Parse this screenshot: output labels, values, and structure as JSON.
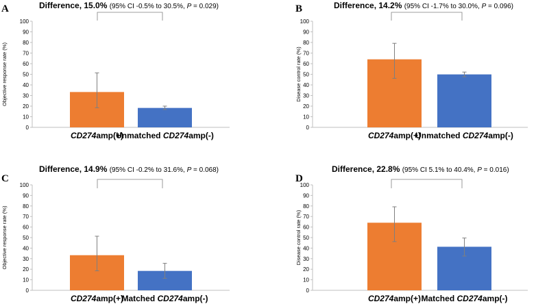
{
  "chart_data": [
    {
      "panel": "A",
      "type": "bar",
      "title_bold": "Difference, 15.0%",
      "title_ci_prefix": "(95% CI -0.5% to 30.5%, ",
      "title_p_label": "P",
      "title_p_value": " = 0.029)",
      "ylabel": "Objective response rate (%)",
      "ylim": [
        0,
        100
      ],
      "yticks": [
        0,
        10,
        20,
        30,
        40,
        50,
        60,
        70,
        80,
        90,
        100
      ],
      "bars": [
        {
          "italic": "CD274",
          "pre": "",
          "post": "amp(+)",
          "value": 33.3,
          "err_low": 18.5,
          "err_high": 51.3,
          "color": "#ED7D31"
        },
        {
          "italic": "CD274",
          "pre": "Unmatched ",
          "post": "amp(-)",
          "value": 18.3,
          "err_low": 16.8,
          "err_high": 20.0,
          "color": "#4472C4"
        }
      ]
    },
    {
      "panel": "B",
      "type": "bar",
      "title_bold": "Difference, 14.2%",
      "title_ci_prefix": "(95% CI -1.7% to 30.0%, ",
      "title_p_label": "P",
      "title_p_value": " = 0.096)",
      "ylabel": "Disease control rate (%)",
      "ylim": [
        0,
        100
      ],
      "yticks": [
        0,
        10,
        20,
        30,
        40,
        50,
        60,
        70,
        80,
        90,
        100
      ],
      "bars": [
        {
          "italic": "CD274",
          "pre": "",
          "post": "amp(+)",
          "value": 64.1,
          "err_low": 46.2,
          "err_high": 79.2,
          "color": "#ED7D31"
        },
        {
          "italic": "CD274",
          "pre": "Unmatched ",
          "post": "amp(-)",
          "value": 49.9,
          "err_low": 47.7,
          "err_high": 52.1,
          "color": "#4472C4"
        }
      ]
    },
    {
      "panel": "C",
      "type": "bar",
      "title_bold": "Difference, 14.9%",
      "title_ci_prefix": "(95% CI -0.2% to 31.6%, ",
      "title_p_label": "P",
      "title_p_value": " = 0.068)",
      "ylabel": "Objective response rate (%)",
      "ylim": [
        0,
        100
      ],
      "yticks": [
        0,
        10,
        20,
        30,
        40,
        50,
        60,
        70,
        80,
        90,
        100
      ],
      "bars": [
        {
          "italic": "CD274",
          "pre": "",
          "post": "amp(+)",
          "value": 33.3,
          "err_low": 18.5,
          "err_high": 51.3,
          "color": "#ED7D31"
        },
        {
          "italic": "CD274",
          "pre": "Matched ",
          "post": "amp(-)",
          "value": 18.4,
          "err_low": 11.4,
          "err_high": 25.6,
          "color": "#4472C4"
        }
      ]
    },
    {
      "panel": "D",
      "type": "bar",
      "title_bold": "Difference, 22.8%",
      "title_ci_prefix": "(95% CI 5.1% to 40.4%, ",
      "title_p_label": "P",
      "title_p_value": " = 0.016)",
      "ylabel": "Disease control rate (%)",
      "ylim": [
        0,
        100
      ],
      "yticks": [
        0,
        10,
        20,
        30,
        40,
        50,
        60,
        70,
        80,
        90,
        100
      ],
      "bars": [
        {
          "italic": "CD274",
          "pre": "",
          "post": "amp(+)",
          "value": 64.1,
          "err_low": 46.2,
          "err_high": 79.2,
          "color": "#ED7D31"
        },
        {
          "italic": "CD274",
          "pre": "Matched ",
          "post": "amp(-)",
          "value": 41.3,
          "err_low": 32.5,
          "err_high": 49.6,
          "color": "#4472C4"
        }
      ]
    }
  ],
  "colors": {
    "axis": "#bfbfbf",
    "error_bar": "#7f7f7f",
    "bracket": "#7f7f7f"
  }
}
